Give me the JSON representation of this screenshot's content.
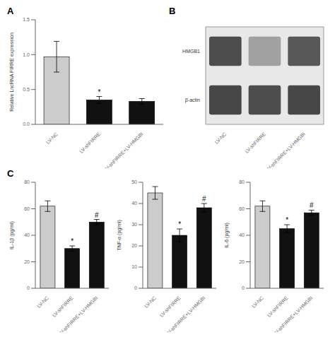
{
  "chart_data": [
    {
      "type": "bar",
      "title": "A",
      "categories": [
        "LV-NC",
        "LV-shFIRRE",
        "LV-shFIRRE+LV-HMGBI"
      ],
      "values": [
        0.97,
        0.35,
        0.33
      ],
      "errors": [
        0.22,
        0.05,
        0.04
      ],
      "colors": [
        "#cccccc",
        "#111111",
        "#111111"
      ],
      "ylabel": "Relative LncRNA FIRRE expression",
      "ylim": [
        0,
        1.5
      ],
      "yticks": [
        {
          "value": 0,
          "label": "0.0"
        },
        0.5,
        {
          "value": 1,
          "label": "1.0"
        },
        1.5
      ],
      "annotations": [
        {
          "category": "LV-shFIRRE",
          "text": "*"
        }
      ]
    },
    {
      "type": "heatmap",
      "title": "B",
      "rows": [
        "HMGB1",
        "β-actin"
      ],
      "categories": [
        "LV-NC",
        "LV-shFIRRE",
        "LV-shFIRRE+LV-HMGBI"
      ],
      "values": [
        [
          0.85,
          0.45,
          0.8
        ],
        [
          0.88,
          0.85,
          0.88
        ]
      ]
    },
    {
      "type": "bar",
      "title": "C",
      "categories": [
        "LV-NC",
        "LV-shFIRRE",
        "LV-shFIRRE+LV-HMGBI"
      ],
      "values": [
        62,
        30,
        50
      ],
      "errors": [
        4,
        2,
        2
      ],
      "colors": [
        "#cccccc",
        "#111111",
        "#111111"
      ],
      "ylabel": "IL-1β (pg/ml)",
      "ylim": [
        0,
        80
      ],
      "yticks": [
        0,
        20,
        40,
        60,
        80
      ],
      "annotations": [
        {
          "category": "LV-shFIRRE",
          "text": "*"
        },
        {
          "category": "LV-shFIRRE+LV-HMGBI",
          "text": "#"
        }
      ]
    },
    {
      "type": "bar",
      "categories": [
        "LV-NC",
        "LV-shFIRRE",
        "LV-shFIRRE+LV-HMGBI"
      ],
      "values": [
        45,
        25,
        38
      ],
      "errors": [
        3,
        3,
        2
      ],
      "colors": [
        "#cccccc",
        "#111111",
        "#111111"
      ],
      "ylabel": "TNF-α (pg/ml)",
      "ylim": [
        0,
        50
      ],
      "yticks": [
        0,
        10,
        20,
        30,
        40,
        50
      ],
      "annotations": [
        {
          "category": "LV-shFIRRE",
          "text": "*"
        },
        {
          "category": "LV-shFIRRE+LV-HMGBI",
          "text": "#"
        }
      ]
    },
    {
      "type": "bar",
      "categories": [
        "LV-NC",
        "LV-shFIRRE",
        "LV-shFIRRE+LV-HMGBI"
      ],
      "values": [
        62,
        45,
        57
      ],
      "errors": [
        4,
        3,
        2
      ],
      "colors": [
        "#cccccc",
        "#111111",
        "#111111"
      ],
      "ylabel": "IL-6 (pg/ml)",
      "ylim": [
        0,
        80
      ],
      "yticks": [
        0,
        20,
        40,
        60,
        80
      ],
      "annotations": [
        {
          "category": "LV-shFIRRE",
          "text": "*"
        },
        {
          "category": "LV-shFIRRE+LV-HMGBI",
          "text": "#"
        }
      ]
    }
  ]
}
